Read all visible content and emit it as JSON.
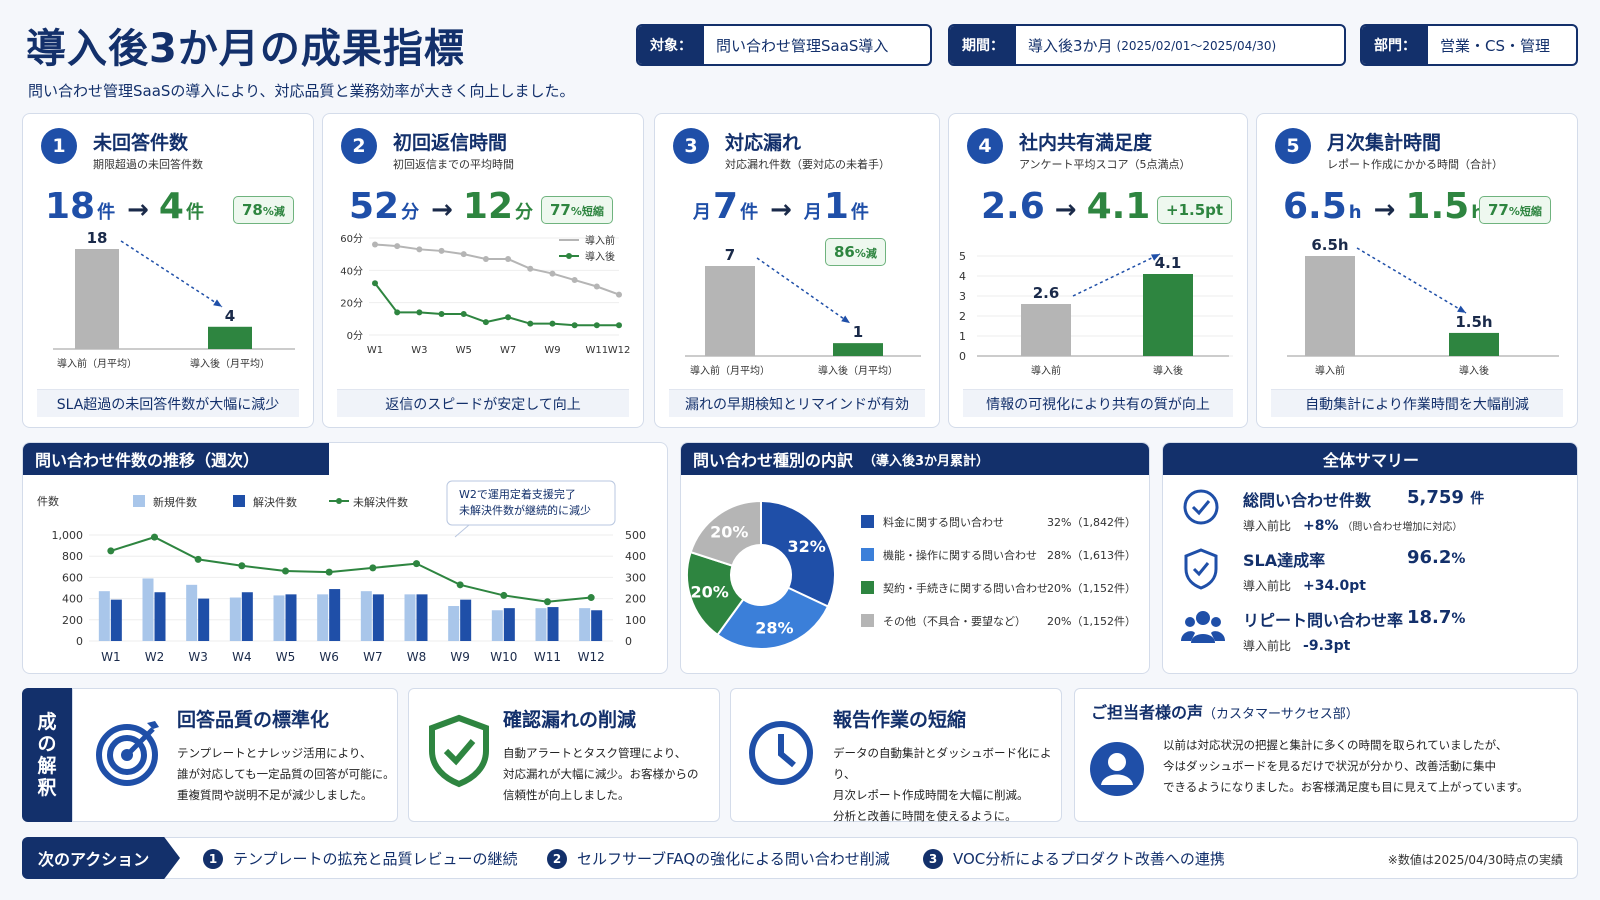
{
  "header": {
    "title": "導入後3か月の成果指標",
    "subtitle": "問い合わせ管理SaaSの導入により、対応品質と業務効率が大きく向上しました。",
    "tags": [
      {
        "key": "対象：",
        "value": "問い合わせ管理SaaS導入",
        "note": ""
      },
      {
        "key": "期間：",
        "value": "導入後3か月",
        "note": "(2025/02/01〜2025/04/30)"
      },
      {
        "key": "部門：",
        "value": "営業・CS・管理",
        "note": ""
      }
    ]
  },
  "kpis": [
    {
      "num": "1",
      "title": "未回答件数",
      "sub": "期限超過の未回答件数",
      "before": "18",
      "before_unit": "件",
      "after": "4",
      "after_unit": "件",
      "arrow": "→",
      "badge": "78",
      "badge_unit": "%減",
      "bars": [
        18,
        4
      ],
      "bar_labels": [
        "18",
        "4"
      ],
      "xlabels": [
        "導入前（月平均）",
        "導入後（月平均）"
      ],
      "footer": "SLA超過の未回答件数が大幅に減少"
    },
    {
      "num": "2",
      "title": "初回返信時間",
      "sub": "初回返信までの平均時間",
      "before": "52",
      "before_unit": "分",
      "after": "12",
      "after_unit": "分",
      "arrow": "→",
      "badge": "77",
      "badge_unit": "%短縮",
      "footer": "返信のスピードが安定して向上",
      "chart": {
        "type": "line",
        "x": [
          "W1",
          "W2",
          "W3",
          "W4",
          "W5",
          "W6",
          "W7",
          "W8",
          "W9",
          "W10",
          "W11",
          "W12"
        ],
        "xticks": [
          "W1",
          "W3",
          "W5",
          "W7",
          "W9",
          "W11",
          "W12"
        ],
        "yticks": [
          "60分",
          "40分",
          "20分",
          "0分"
        ],
        "ylim": [
          0,
          60
        ],
        "series": [
          {
            "name": "導入前",
            "values": [
              56,
              55,
              53,
              52,
              50,
              47,
              47,
              41,
              38,
              34,
              30,
              25
            ],
            "color": "#b5b5b5"
          },
          {
            "name": "導入後",
            "values": [
              32,
              14,
              14,
              13,
              13,
              8,
              11,
              7,
              7,
              6,
              6,
              6
            ],
            "color": "#2e8540"
          }
        ]
      }
    },
    {
      "num": "3",
      "title": "対応漏れ",
      "sub": "対応漏れ件数（要対応の未着手）",
      "before_prefix": "月",
      "before": "7",
      "before_unit": "件",
      "after_prefix": "月",
      "after": "1",
      "after_unit": "件",
      "arrow": "→",
      "badge": "86",
      "badge_unit": "%減",
      "bars": [
        7,
        1
      ],
      "bar_labels": [
        "7",
        "1"
      ],
      "xlabels": [
        "導入前（月平均）",
        "導入後（月平均）"
      ],
      "footer": "漏れの早期検知とリマインドが有効"
    },
    {
      "num": "4",
      "title": "社内共有満足度",
      "sub": "アンケート平均スコア（5点満点）",
      "before": "2.6",
      "before_unit": "",
      "after": "4.1",
      "after_unit": "",
      "arrow": "→",
      "badge": "+1.5pt",
      "badge_unit": "",
      "bars": [
        2.6,
        4.1
      ],
      "bar_labels": [
        "2.6",
        "4.1"
      ],
      "xlabels": [
        "導入前",
        "導入後"
      ],
      "yticks": [
        "5",
        "4",
        "3",
        "2",
        "1",
        "0"
      ],
      "footer": "情報の可視化により共有の質が向上"
    },
    {
      "num": "5",
      "title": "月次集計時間",
      "sub": "レポート作成にかかる時間（合計）",
      "before": "6.5",
      "before_unit": "h",
      "after": "1.5",
      "after_unit": "h",
      "arrow": "→",
      "badge": "77",
      "badge_unit": "%短縮",
      "bars": [
        6.5,
        1.5
      ],
      "bar_labels": [
        "6.5h",
        "1.5h"
      ],
      "xlabels": [
        "導入前",
        "導入後"
      ],
      "footer": "自動集計により作業時間を大幅削減"
    }
  ],
  "chart_data": [
    {
      "type": "bar",
      "title": "問い合わせ件数の推移（週次）",
      "categories": [
        "W1",
        "W2",
        "W3",
        "W4",
        "W5",
        "W6",
        "W7",
        "W8",
        "W9",
        "W10",
        "W11",
        "W12"
      ],
      "ylabel": "件数",
      "ylim": [
        0,
        1000
      ],
      "y2lim": [
        0,
        500
      ],
      "yticks": [
        "1,000",
        "800",
        "600",
        "400",
        "200",
        "0"
      ],
      "y2ticks": [
        "500",
        "400",
        "300",
        "200",
        "100",
        "0"
      ],
      "series": [
        {
          "name": "新規件数",
          "values": [
            470,
            590,
            530,
            410,
            430,
            440,
            470,
            440,
            330,
            290,
            310,
            310
          ],
          "color": "#a9c6ea"
        },
        {
          "name": "解決件数",
          "values": [
            390,
            460,
            400,
            460,
            440,
            490,
            440,
            440,
            390,
            310,
            320,
            290
          ],
          "color": "#1f4fa8"
        },
        {
          "name": "未解決件数",
          "axis": "right",
          "values": [
            425,
            490,
            385,
            355,
            330,
            325,
            345,
            365,
            265,
            215,
            185,
            205
          ],
          "color": "#2e8540"
        }
      ],
      "annotation": "W2で運用定着支援完了\n未解決件数が継続的に減少"
    },
    {
      "type": "pie",
      "title": "問い合わせ種別の内訳",
      "subtitle": "（導入後3か月累計）",
      "slices": [
        {
          "label": "料金に関する問い合わせ",
          "pct": 32,
          "count": "32%（1,842件）",
          "color": "#1f4fa8"
        },
        {
          "label": "機能・操作に関する問い合わせ",
          "pct": 28,
          "count": "28%（1,613件）",
          "color": "#3b7fd9"
        },
        {
          "label": "契約・手続きに関する問い合わせ",
          "pct": 20,
          "count": "20%（1,152件）",
          "color": "#2e8540"
        },
        {
          "label": "その他（不具合・要望など）",
          "pct": 20,
          "count": "20%（1,152件）",
          "color": "#b5b5b5"
        }
      ]
    }
  ],
  "summary": {
    "title": "全体サマリー",
    "items": [
      {
        "label": "総問い合わせ件数",
        "value": "5,759",
        "unit": "件",
        "cmp": "導入前比",
        "delta": "+8%",
        "note": "（問い合わせ増加に対応）",
        "icon": "check-circle-icon"
      },
      {
        "label": "SLA達成率",
        "value": "96.2",
        "unit": "%",
        "cmp": "導入前比",
        "delta": "+34.0pt",
        "note": "",
        "icon": "shield-check-icon"
      },
      {
        "label": "リピート問い合わせ率",
        "value": "18.7",
        "unit": "%",
        "cmp": "導入前比",
        "delta": "-9.3pt",
        "note": "",
        "icon": "users-icon"
      }
    ]
  },
  "interpretation": {
    "label": "成果の解釈",
    "label_chars": [
      "成",
      "の",
      "解",
      "釈"
    ],
    "cards": [
      {
        "title": "回答品質の標準化",
        "body": "テンプレートとナレッジ活用により、\n誰が対応しても一定品質の回答が可能に。\n重複質問や説明不足が減少しました。"
      },
      {
        "title": "確認漏れの削減",
        "body": "自動アラートとタスク管理により、\n対応漏れが大幅に減少。お客様からの\n信頼性が向上しました。"
      },
      {
        "title": "報告作業の短縮",
        "body": "データの自動集計とダッシュボード化により、\n月次レポート作成時間を大幅に削減。\n分析と改善に時間を使えるように。"
      }
    ],
    "voice": {
      "title": "ご担当者様の声",
      "dept": "（カスタマーサクセス部）",
      "body": "以前は対応状況の把握と集計に多くの時間を取られていましたが、\n今はダッシュボードを見るだけで状況が分かり、改善活動に集中\nできるようになりました。お客様満足度も目に見えて上がっています。"
    }
  },
  "next": {
    "label": "次のアクション",
    "items": [
      {
        "n": "1",
        "text": "テンプレートの拡充と品質レビューの継続"
      },
      {
        "n": "2",
        "text": "セルフサーブFAQの強化による問い合わせ削減"
      },
      {
        "n": "3",
        "text": "VOC分析によるプロダクト改善への連携"
      }
    ],
    "note": "※数値は2025/04/30時点の実績"
  }
}
